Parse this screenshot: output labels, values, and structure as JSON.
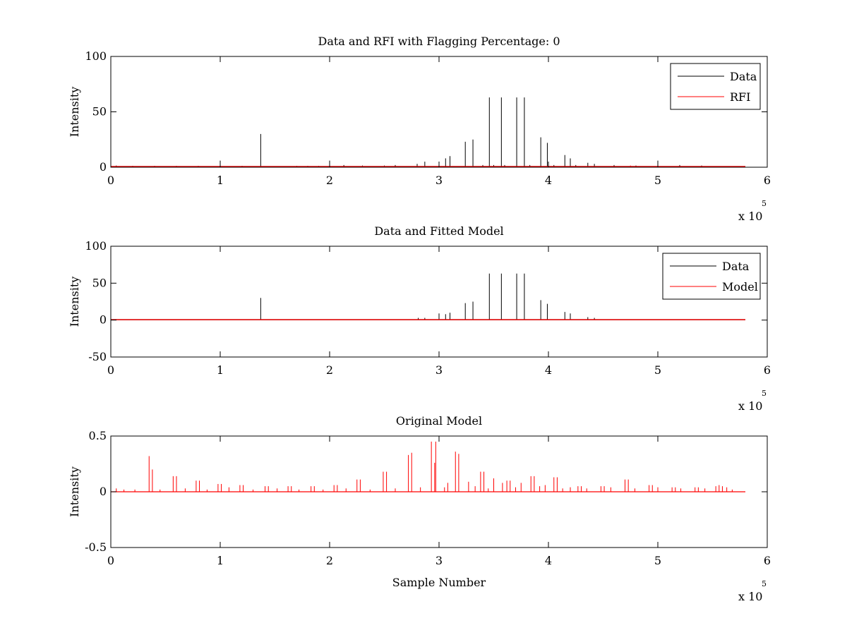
{
  "chart_data": [
    {
      "type": "line",
      "title": "Data and RFI with Flagging Percentage: 0",
      "xlabel": "",
      "ylabel": "Intensity",
      "xlim": [
        0,
        600000
      ],
      "ylim": [
        0,
        100
      ],
      "x_ticks": [
        0,
        1,
        2,
        3,
        4,
        5,
        6
      ],
      "y_ticks": [
        0,
        50,
        100
      ],
      "x_exponent_label": "x 10",
      "x_exponent_power": "5",
      "legend_position": "top-right",
      "legend": [
        {
          "label": "Data",
          "color": "#000000"
        },
        {
          "label": "RFI",
          "color": "#ff0000"
        }
      ],
      "x_end": 580000,
      "baseline": 0.6,
      "series": [
        {
          "name": "Data",
          "color": "#000000",
          "spikes": [
            [
              137000,
              30
            ],
            [
              300000,
              4
            ],
            [
              287000,
              5
            ],
            [
              306000,
              8
            ],
            [
              310000,
              10
            ],
            [
              324000,
              23
            ],
            [
              331000,
              25
            ],
            [
              346000,
              63
            ],
            [
              357000,
              63
            ],
            [
              371000,
              63
            ],
            [
              378000,
              63
            ],
            [
              393000,
              27
            ],
            [
              399000,
              22
            ],
            [
              415000,
              11
            ],
            [
              420000,
              8
            ],
            [
              436000,
              4
            ],
            [
              442000,
              3
            ],
            [
              100000,
              6
            ],
            [
              200000,
              6
            ],
            [
              500000,
              6
            ],
            [
              280000,
              3
            ],
            [
              260000,
              2
            ],
            [
              213000,
              2
            ],
            [
              230000,
              1.5
            ],
            [
              250000,
              1.5
            ],
            [
              520000,
              2
            ],
            [
              480000,
              1.5
            ],
            [
              540000,
              1.5
            ],
            [
              340000,
              2
            ],
            [
              350000,
              2
            ],
            [
              360000,
              2
            ],
            [
              383000,
              2
            ],
            [
              405000,
              2
            ],
            [
              425000,
              2
            ],
            [
              460000,
              2
            ],
            [
              170000,
              1.2
            ],
            [
              180000,
              1.2
            ],
            [
              190000,
              1.2
            ],
            [
              120000,
              1.2
            ],
            [
              80000,
              1.2
            ],
            [
              60000,
              1.2
            ],
            [
              40000,
              1.2
            ],
            [
              20000,
              1.2
            ],
            [
              5000,
              1.5
            ]
          ]
        },
        {
          "name": "RFI",
          "color": "#ff0000",
          "spikes": [
            [
              475000,
              1.5
            ]
          ]
        }
      ]
    },
    {
      "type": "line",
      "title": "Data and Fitted Model",
      "xlabel": "",
      "ylabel": "Intensity",
      "xlim": [
        0,
        600000
      ],
      "ylim": [
        -50,
        100
      ],
      "x_ticks": [
        0,
        1,
        2,
        3,
        4,
        5,
        6
      ],
      "y_ticks": [
        -50,
        0,
        50,
        100
      ],
      "x_exponent_label": "x 10",
      "x_exponent_power": "5",
      "legend_position": "top-right",
      "legend": [
        {
          "label": "Data",
          "color": "#000000"
        },
        {
          "label": "Model",
          "color": "#ff0000"
        }
      ],
      "x_end": 580000,
      "baseline": 0.6,
      "series": [
        {
          "name": "Data",
          "color": "#000000",
          "spikes": [
            [
              137000,
              30
            ],
            [
              281000,
              3
            ],
            [
              287000,
              3
            ],
            [
              300000,
              9
            ],
            [
              306000,
              8
            ],
            [
              310000,
              10
            ],
            [
              324000,
              23
            ],
            [
              331000,
              25
            ],
            [
              346000,
              63
            ],
            [
              357000,
              63
            ],
            [
              371000,
              63
            ],
            [
              378000,
              63
            ],
            [
              393000,
              27
            ],
            [
              399000,
              22
            ],
            [
              415000,
              11
            ],
            [
              420000,
              9
            ],
            [
              436000,
              4
            ],
            [
              442000,
              3
            ]
          ]
        },
        {
          "name": "Model",
          "color": "#ff0000",
          "spikes": []
        }
      ]
    },
    {
      "type": "line",
      "title": "Original Model",
      "xlabel": "Sample Number",
      "ylabel": "Intensity",
      "xlim": [
        0,
        600000
      ],
      "ylim": [
        -0.5,
        0.5
      ],
      "x_ticks": [
        0,
        1,
        2,
        3,
        4,
        5,
        6
      ],
      "y_ticks": [
        -0.5,
        0,
        0.5
      ],
      "x_exponent_label": "x 10",
      "x_exponent_power": "5",
      "legend_position": "none",
      "legend": [],
      "x_end": 580000,
      "baseline": 0.0,
      "series": [
        {
          "name": "Model",
          "color": "#ff0000",
          "spikes": [
            [
              35000,
              0.32
            ],
            [
              38000,
              0.2
            ],
            [
              57000,
              0.14
            ],
            [
              60000,
              0.14
            ],
            [
              78000,
              0.1
            ],
            [
              81000,
              0.1
            ],
            [
              98000,
              0.07
            ],
            [
              101000,
              0.07
            ],
            [
              118000,
              0.06
            ],
            [
              121000,
              0.06
            ],
            [
              141000,
              0.05
            ],
            [
              144000,
              0.05
            ],
            [
              162000,
              0.05
            ],
            [
              165000,
              0.05
            ],
            [
              183000,
              0.05
            ],
            [
              186000,
              0.05
            ],
            [
              204000,
              0.06
            ],
            [
              207000,
              0.06
            ],
            [
              225000,
              0.11
            ],
            [
              228000,
              0.11
            ],
            [
              249000,
              0.18
            ],
            [
              252000,
              0.18
            ],
            [
              272000,
              0.33
            ],
            [
              275000,
              0.35
            ],
            [
              293000,
              0.45
            ],
            [
              296000,
              0.26
            ],
            [
              297000,
              0.45
            ],
            [
              315000,
              0.36
            ],
            [
              318000,
              0.34
            ],
            [
              308000,
              0.08
            ],
            [
              327000,
              0.09
            ],
            [
              338000,
              0.18
            ],
            [
              341000,
              0.18
            ],
            [
              350000,
              0.12
            ],
            [
              358000,
              0.08
            ],
            [
              362000,
              0.1
            ],
            [
              365000,
              0.1
            ],
            [
              375000,
              0.08
            ],
            [
              384000,
              0.14
            ],
            [
              387000,
              0.14
            ],
            [
              397000,
              0.06
            ],
            [
              405000,
              0.13
            ],
            [
              408000,
              0.13
            ],
            [
              420000,
              0.04
            ],
            [
              427000,
              0.05
            ],
            [
              430000,
              0.05
            ],
            [
              448000,
              0.05
            ],
            [
              451000,
              0.05
            ],
            [
              470000,
              0.11
            ],
            [
              473000,
              0.11
            ],
            [
              492000,
              0.06
            ],
            [
              495000,
              0.06
            ],
            [
              513000,
              0.04
            ],
            [
              516000,
              0.04
            ],
            [
              534000,
              0.04
            ],
            [
              537000,
              0.04
            ],
            [
              553000,
              0.05
            ],
            [
              556000,
              0.06
            ],
            [
              559000,
              0.05
            ],
            [
              563000,
              0.04
            ],
            [
              5000,
              0.03
            ],
            [
              12000,
              0.02
            ],
            [
              22000,
              0.02
            ],
            [
              45000,
              0.02
            ],
            [
              68000,
              0.03
            ],
            [
              88000,
              0.02
            ],
            [
              108000,
              0.04
            ],
            [
              130000,
              0.02
            ],
            [
              152000,
              0.03
            ],
            [
              172000,
              0.02
            ],
            [
              194000,
              0.02
            ],
            [
              215000,
              0.03
            ],
            [
              237000,
              0.02
            ],
            [
              260000,
              0.03
            ],
            [
              283000,
              0.04
            ],
            [
              305000,
              0.04
            ],
            [
              333000,
              0.05
            ],
            [
              345000,
              0.03
            ],
            [
              370000,
              0.04
            ],
            [
              392000,
              0.05
            ],
            [
              413000,
              0.03
            ],
            [
              435000,
              0.03
            ],
            [
              457000,
              0.04
            ],
            [
              479000,
              0.03
            ],
            [
              500000,
              0.04
            ],
            [
              521000,
              0.03
            ],
            [
              543000,
              0.03
            ],
            [
              568000,
              0.02
            ]
          ]
        }
      ]
    }
  ]
}
